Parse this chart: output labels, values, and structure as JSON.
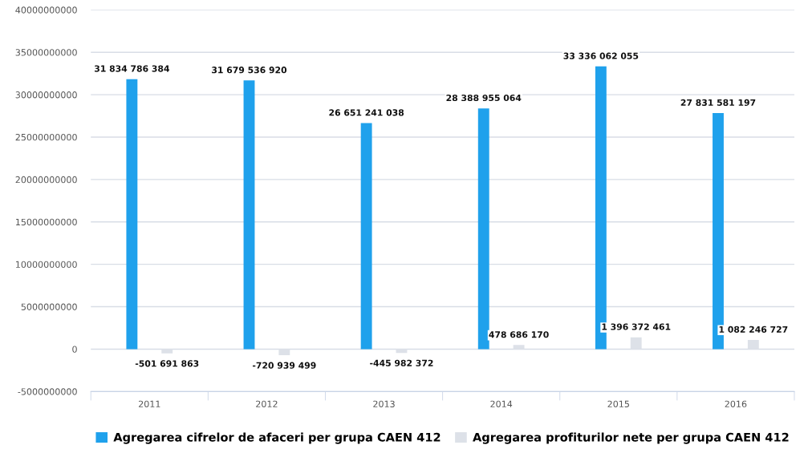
{
  "chart_data": {
    "type": "bar",
    "categories": [
      "2011",
      "2012",
      "2013",
      "2014",
      "2015",
      "2016"
    ],
    "series": [
      {
        "name": "Agregarea cifrelor de afaceri per grupa CAEN 412",
        "color": "#1fa1ec",
        "values": [
          31834786384,
          31679536920,
          26651241038,
          28388955064,
          33336062055,
          27831581197
        ],
        "value_labels": [
          "31 834 786 384",
          "31 679 536 920",
          "26 651 241 038",
          "28 388 955 064",
          "33 336 062 055",
          "27 831 581 197"
        ]
      },
      {
        "name": "Agregarea profiturilor nete per grupa CAEN 412",
        "color": "#dde1e8",
        "values": [
          -501691863,
          -720939499,
          -445982372,
          478686170,
          1396372461,
          1082246727
        ],
        "value_labels": [
          "-501 691 863",
          "-720 939 499",
          "-445 982 372",
          "478 686 170",
          "1 396 372 461",
          "1 082 246 727"
        ]
      }
    ],
    "ylim": [
      -5000000000,
      40000000000
    ],
    "yticks": [
      -5000000000,
      0,
      5000000000,
      10000000000,
      15000000000,
      20000000000,
      25000000000,
      30000000000,
      35000000000,
      40000000000
    ],
    "grid": "y",
    "legend": "bottom"
  }
}
